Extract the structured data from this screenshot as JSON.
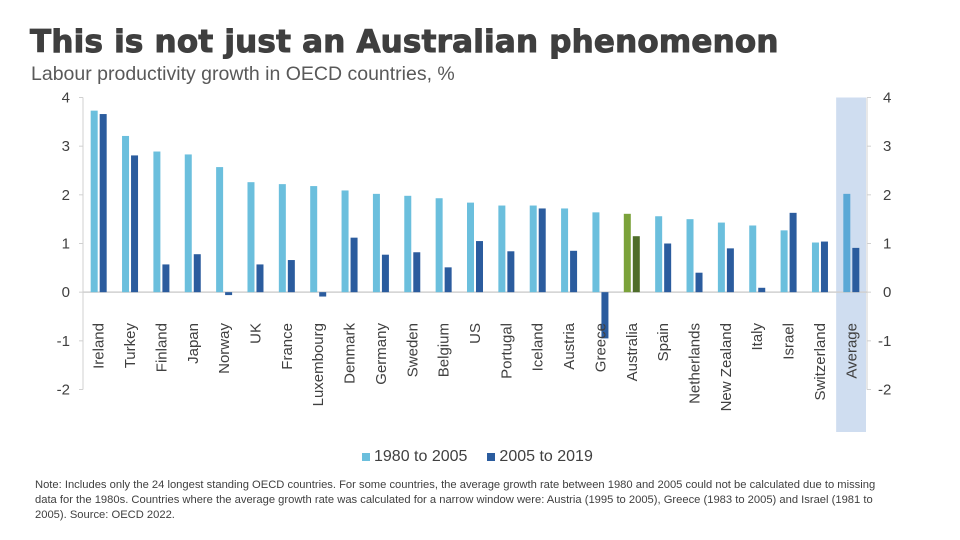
{
  "header": {
    "title": "This is not just an Australian phenomenon",
    "subtitle": "Labour productivity growth in OECD countries, %"
  },
  "colors": {
    "series1": "#6BBFDD",
    "series2": "#2B5C9E",
    "highlight1": "#7BA23A",
    "highlight2": "#4F6D2A",
    "average1": "#5AA8D6",
    "average_band": "#CFDDF0",
    "axis": "#D0D0D0"
  },
  "chart_data": {
    "type": "bar",
    "title": "Labour productivity growth in OECD countries, %",
    "xlabel": "",
    "ylabel": "%",
    "ylim": [
      -2,
      4
    ],
    "yticks": [
      4,
      3,
      2,
      1,
      0,
      -1,
      -2
    ],
    "ytick_labels": [
      "4",
      "3",
      "2",
      "1",
      "0",
      "-1",
      "-2"
    ],
    "secondary_yaxis": true,
    "grid": false,
    "legend_position": "bottom",
    "highlight_category": "Australia",
    "band_category": "Average",
    "categories": [
      "Ireland",
      "Turkey",
      "Finland",
      "Japan",
      "Norway",
      "UK",
      "France",
      "Luxembourg",
      "Denmark",
      "Germany",
      "Sweden",
      "Belgium",
      "US",
      "Portugal",
      "Iceland",
      "Austria",
      "Greece",
      "Australia",
      "Spain",
      "Netherlands",
      "New Zealand",
      "Italy",
      "Israel",
      "Switzerland",
      "Average"
    ],
    "series": [
      {
        "name": "1980 to 2005",
        "values": [
          3.73,
          3.21,
          2.89,
          2.83,
          2.57,
          2.26,
          2.22,
          2.18,
          2.09,
          2.02,
          1.98,
          1.93,
          1.84,
          1.78,
          1.78,
          1.72,
          1.64,
          1.61,
          1.56,
          1.5,
          1.43,
          1.37,
          1.27,
          1.02,
          2.02
        ]
      },
      {
        "name": "2005 to 2019",
        "values": [
          3.66,
          2.81,
          0.57,
          0.78,
          -0.06,
          0.57,
          0.66,
          -0.09,
          1.12,
          0.77,
          0.82,
          0.51,
          1.05,
          0.84,
          1.72,
          0.85,
          -0.95,
          1.15,
          1.0,
          0.4,
          0.9,
          0.09,
          1.63,
          1.04,
          0.91
        ]
      }
    ]
  },
  "legend": {
    "items": [
      {
        "label": "1980 to 2005"
      },
      {
        "label": "2005 to 2019"
      }
    ]
  },
  "note": "Note: Includes only the 24 longest standing OECD countries. For some countries, the average growth rate between 1980 and 2005 could not be calculated due to missing data for the 1980s. Countries where the average growth rate was calculated for a narrow window were: Austria (1995 to 2005), Greece (1983 to 2005) and Israel (1981 to 2005). Source: OECD 2022."
}
